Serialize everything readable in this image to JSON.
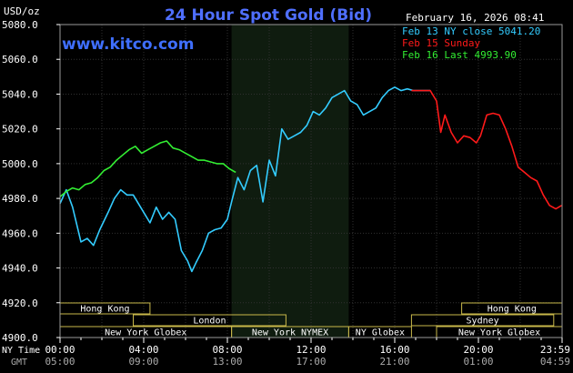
{
  "header": {
    "unit_label": "USD/oz",
    "title": "24 Hour Spot Gold (Bid)",
    "datetime": "February 16, 2026 08:41",
    "watermark": "www.kitco.com"
  },
  "legend": [
    {
      "label": "Feb 13 NY close 5041.20",
      "color": "#33ccff"
    },
    {
      "label": "Feb 15 Sunday",
      "color": "#ff1a1a"
    },
    {
      "label": "Feb 16 Last 4993.90",
      "color": "#33ee33"
    }
  ],
  "axis_labels": {
    "ny_time": "NY Time",
    "gmt": "GMT"
  },
  "sessions": {
    "hong_kong_left": "Hong Kong",
    "london": "London",
    "ny_globex_left": "New York Globex",
    "ny_nymex": "New York NYMEX",
    "ny_globex_mid": "NY Globex",
    "hong_kong_right": "Hong Kong",
    "sydney": "Sydney",
    "ny_globex_right": "New York Globex"
  },
  "chart_data": {
    "type": "line",
    "title": "24 Hour Spot Gold (Bid)",
    "ylabel": "USD/oz",
    "ylim": [
      4900,
      5080
    ],
    "yticks": [
      4900,
      4920,
      4940,
      4960,
      4980,
      5000,
      5020,
      5040,
      5060,
      5080
    ],
    "ytick_labels": [
      "4900.0",
      "4920.0",
      "4940.0",
      "4960.0",
      "4980.0",
      "5000.0",
      "5020.0",
      "5040.0",
      "5060.0",
      "5080.0"
    ],
    "xlim": [
      0,
      24
    ],
    "x_unit": "hours (NY time)",
    "xticks": [
      0,
      4,
      8,
      12,
      16,
      20,
      23.98
    ],
    "xtick_labels_ny": [
      "00:00",
      "04:00",
      "08:00",
      "12:00",
      "16:00",
      "20:00",
      "23:59"
    ],
    "xtick_labels_gmt": [
      "05:00",
      "09:00",
      "13:00",
      "17:00",
      "21:00",
      "01:00",
      "04:59"
    ],
    "shaded_region_hours": [
      8.2,
      13.8
    ],
    "grid": true,
    "series": [
      {
        "name": "Feb 13 NY close 5041.20",
        "color": "#33ccff",
        "x": [
          0.0,
          0.3,
          0.6,
          1.0,
          1.3,
          1.6,
          1.9,
          2.3,
          2.6,
          2.9,
          3.2,
          3.5,
          3.8,
          4.0,
          4.3,
          4.6,
          4.9,
          5.2,
          5.5,
          5.8,
          6.1,
          6.3,
          6.5,
          6.8,
          7.1,
          7.4,
          7.7,
          8.0,
          8.2,
          8.5,
          8.8,
          9.1,
          9.4,
          9.7,
          10.0,
          10.3,
          10.6,
          10.9,
          11.2,
          11.5,
          11.8,
          12.1,
          12.4,
          12.7,
          13.0,
          13.3,
          13.6,
          13.9,
          14.2,
          14.5,
          14.8,
          15.1,
          15.4,
          15.7,
          16.0,
          16.3,
          16.6,
          16.9,
          17.2,
          17.5,
          17.7
        ],
        "values": [
          4977,
          4985,
          4975,
          4955,
          4957,
          4953,
          4962,
          4972,
          4980,
          4985,
          4982,
          4982,
          4976,
          4972,
          4966,
          4975,
          4968,
          4972,
          4968,
          4950,
          4944,
          4938,
          4943,
          4950,
          4960,
          4962,
          4963,
          4968,
          4978,
          4992,
          4985,
          4996,
          4999,
          4978,
          5002,
          4993,
          5020,
          5014,
          5016,
          5018,
          5022,
          5030,
          5028,
          5032,
          5038,
          5040,
          5042,
          5036,
          5034,
          5028,
          5030,
          5032,
          5038,
          5042,
          5044,
          5042,
          5043,
          5042,
          5042,
          5042,
          5042
        ]
      },
      {
        "name": "Feb 15 Sunday",
        "color": "#ff1a1a",
        "x": [
          16.8,
          17.4,
          17.7,
          18.0,
          18.2,
          18.4,
          18.7,
          19.0,
          19.3,
          19.6,
          19.9,
          20.1,
          20.4,
          20.7,
          21.0,
          21.3,
          21.6,
          21.9,
          22.2,
          22.5,
          22.8,
          23.1,
          23.4,
          23.7,
          23.98
        ],
        "values": [
          5042,
          5042,
          5042,
          5036,
          5018,
          5028,
          5018,
          5012,
          5016,
          5015,
          5012,
          5016,
          5028,
          5029,
          5028,
          5020,
          5010,
          4998,
          4995,
          4992,
          4990,
          4982,
          4976,
          4974,
          4976
        ]
      },
      {
        "name": "Feb 16 Last 4993.90",
        "color": "#33ee33",
        "x": [
          0.0,
          0.3,
          0.6,
          0.9,
          1.2,
          1.5,
          1.8,
          2.1,
          2.4,
          2.7,
          3.0,
          3.3,
          3.6,
          3.9,
          4.2,
          4.5,
          4.8,
          5.1,
          5.4,
          5.7,
          6.0,
          6.3,
          6.6,
          6.9,
          7.2,
          7.5,
          7.8,
          8.1,
          8.4
        ],
        "values": [
          4981,
          4984,
          4986,
          4985,
          4988,
          4989,
          4992,
          4996,
          4998,
          5002,
          5005,
          5008,
          5010,
          5006,
          5008,
          5010,
          5012,
          5013,
          5009,
          5008,
          5006,
          5004,
          5002,
          5002,
          5001,
          5000,
          5000,
          4997,
          4995
        ]
      }
    ]
  }
}
